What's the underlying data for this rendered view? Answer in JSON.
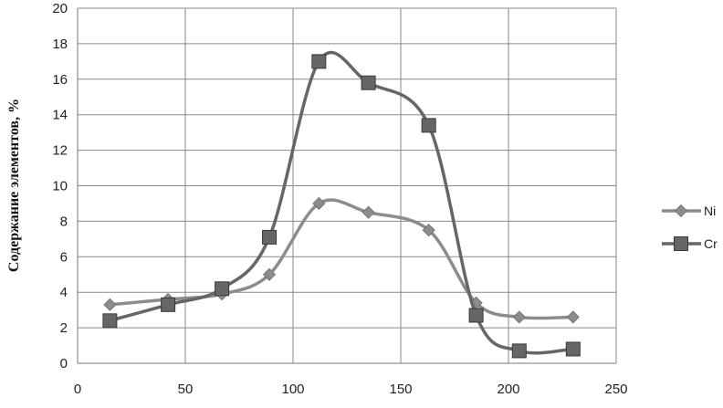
{
  "chart_data": {
    "type": "scatter",
    "title": "",
    "xlabel": "",
    "ylabel": "Содержание элементов, %",
    "xlim": [
      0,
      250
    ],
    "ylim": [
      0,
      20
    ],
    "xticks": [
      0,
      50,
      100,
      150,
      200,
      250
    ],
    "yticks": [
      0,
      2,
      4,
      6,
      8,
      10,
      12,
      14,
      16,
      18,
      20
    ],
    "grid": true,
    "smooth": true,
    "legend_position": "right",
    "series": [
      {
        "name": "Ni",
        "marker": "diamond",
        "color": "#8c8c8c",
        "x": [
          15,
          42,
          67,
          89,
          112,
          135,
          163,
          185,
          205,
          230
        ],
        "y": [
          3.3,
          3.6,
          3.9,
          5.0,
          9.0,
          8.5,
          7.5,
          3.4,
          2.6,
          2.6
        ]
      },
      {
        "name": "Cr",
        "marker": "square",
        "color": "#666666",
        "x": [
          15,
          42,
          67,
          89,
          112,
          135,
          163,
          185,
          205,
          230
        ],
        "y": [
          2.4,
          3.3,
          4.2,
          7.1,
          17.0,
          15.8,
          13.4,
          2.7,
          0.7,
          0.8
        ]
      }
    ]
  }
}
